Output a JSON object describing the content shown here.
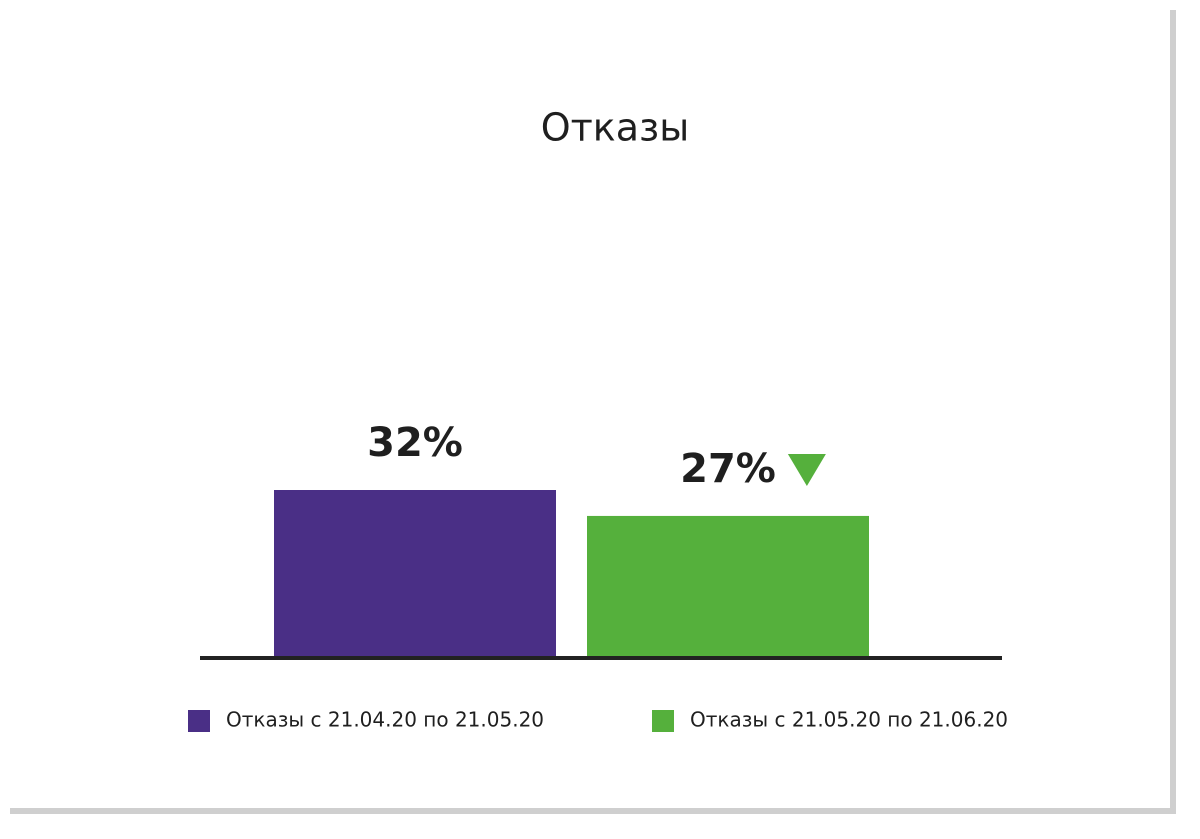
{
  "chart_data": {
    "type": "bar",
    "title": "Отказы",
    "categories": [
      null
    ],
    "series": [
      {
        "name": "Отказы с 21.04.20 по 21.05.20",
        "color": "#4a2f86",
        "values": [
          32
        ],
        "value_labels": [
          "32%"
        ]
      },
      {
        "name": "Отказы с 21.05.20 по 21.06.20",
        "color": "#55b03c",
        "values": [
          27
        ],
        "value_labels": [
          "27%"
        ]
      }
    ]
  }
}
